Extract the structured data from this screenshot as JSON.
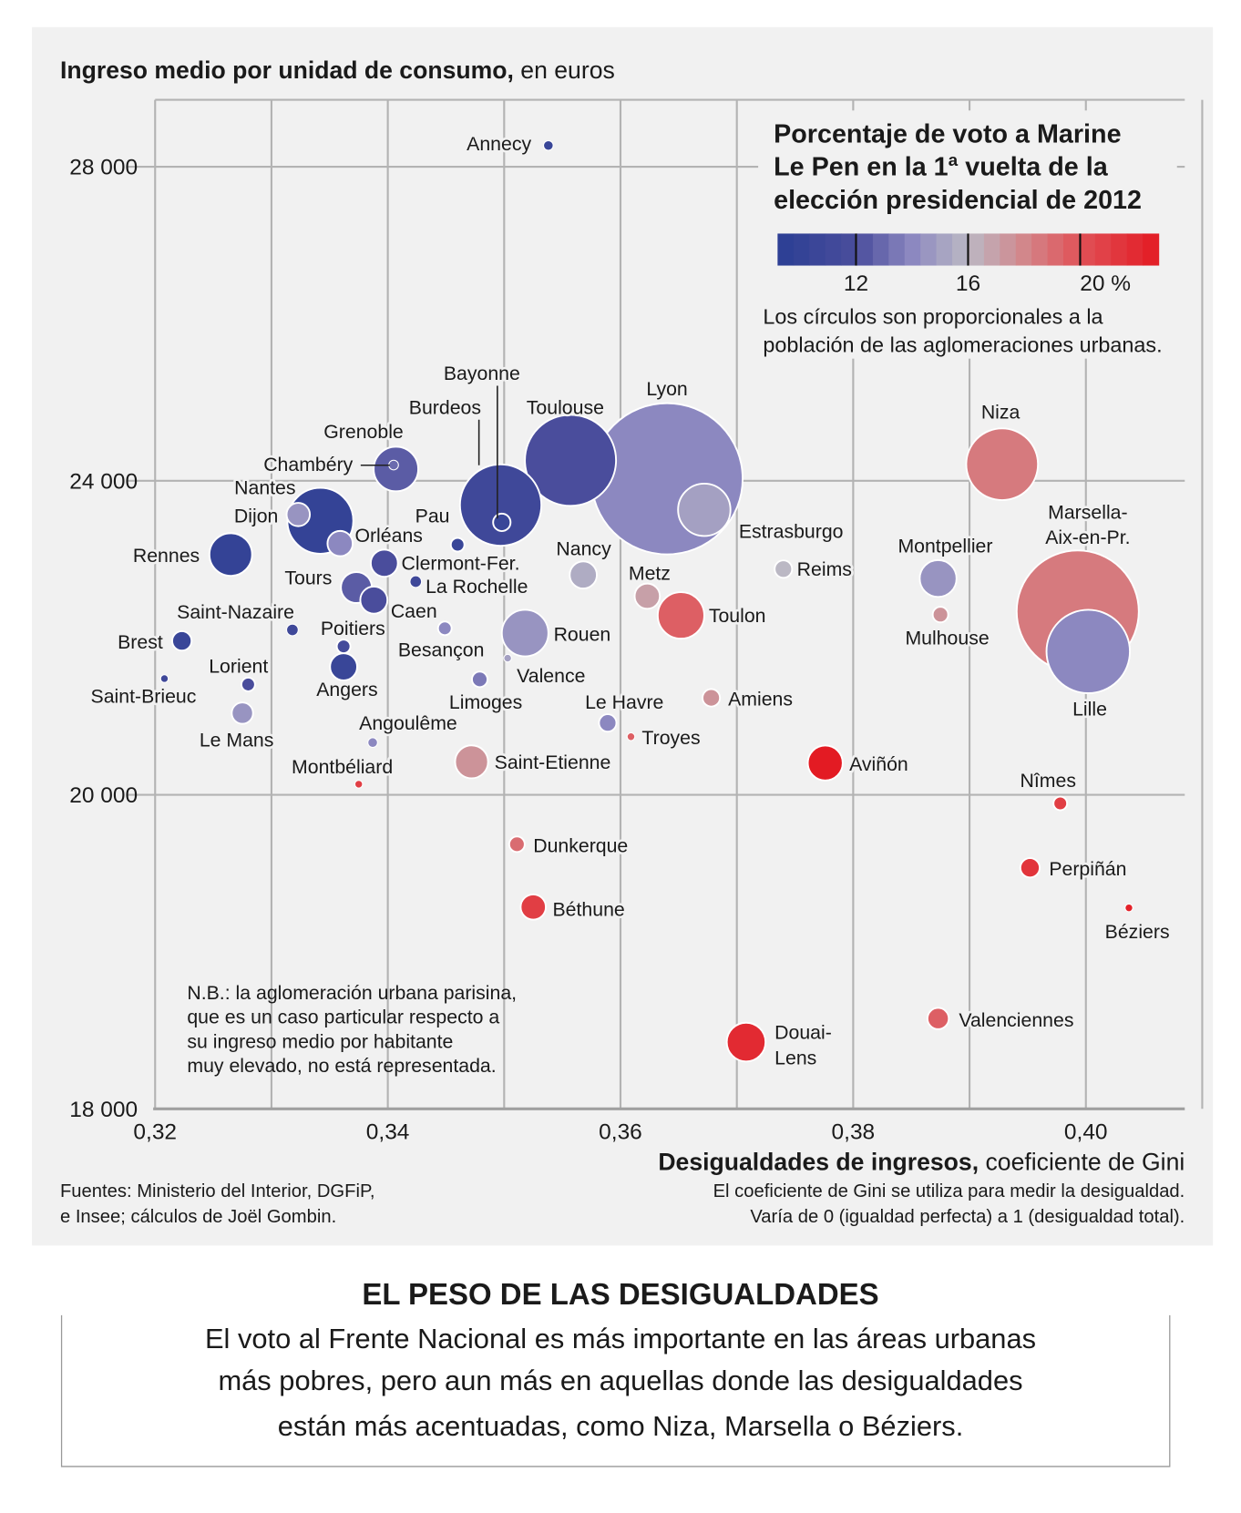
{
  "header": {
    "ylabel_bold": "Ingreso medio por unidad de consumo,",
    "ylabel_rest": " en euros"
  },
  "legend": {
    "title_lines": [
      "Porcentaje de voto a Marine",
      "Le Pen en la 1ª vuelta de la",
      "elección presidencial de 2012"
    ],
    "scale_ticks": [
      {
        "value": 12,
        "label": "12"
      },
      {
        "value": 16,
        "label": "16"
      },
      {
        "value": 20,
        "label": "20 %"
      }
    ],
    "scale_range": [
      9.2,
      22.8
    ],
    "colors": {
      "low": "#2b3f94",
      "mid": "#bbb8c4",
      "high": "#e31b23"
    },
    "note_lines": [
      "Los círculos son proporcionales a la",
      "población de las aglomeraciones urbanas."
    ]
  },
  "nb_lines": [
    "N.B.: la aglomeración urbana parisina,",
    "que es un caso particular respecto a",
    "su ingreso medio por habitante",
    "muy elevado, no está representada."
  ],
  "xaxis": {
    "title_bold": "Desigualdades de ingresos,",
    "title_rest": " coeficiente de Gini",
    "note_lines": [
      "El coeficiente de Gini se utiliza para medir la desigualdad.",
      "Varía de 0 (igualdad perfecta) a 1 (desigualdad total)."
    ]
  },
  "sources_lines": [
    "Fuentes: Ministerio del Interior, DGFiP,",
    "e Insee; cálculos de Joël Gombin."
  ],
  "footer": {
    "title": "EL PESO DE LAS DESIGUALDADES",
    "lines": [
      "El voto al Frente Nacional es más importante en las áreas urbanas",
      "más pobres, pero aun más en aquellas donde las desigualdades",
      "están más acentuadas, como Niza, Marsella o Béziers."
    ]
  },
  "chart_data": {
    "type": "scatter",
    "xlim": [
      0.32,
      0.41
    ],
    "x_ticks": [
      {
        "v": 0.32,
        "label": "0,32"
      },
      {
        "v": 0.34,
        "label": "0,34"
      },
      {
        "v": 0.36,
        "label": "0,36"
      },
      {
        "v": 0.38,
        "label": "0,38"
      },
      {
        "v": 0.4,
        "label": "0,40"
      }
    ],
    "y_ticks": [
      {
        "v": 18000,
        "label": "18 000"
      },
      {
        "v": 20000,
        "label": "20 000"
      },
      {
        "v": 24000,
        "label": "24 000"
      },
      {
        "v": 28000,
        "label": "28 000"
      }
    ],
    "grid": true,
    "size_encoding": "population (relative, Lyon = 100)",
    "color_encoding": "vote share Marine Le Pen %",
    "points": [
      {
        "name": "Annecy",
        "gini": 0.3538,
        "income": 28270,
        "vote": 10.5,
        "pop_rel": 0.41
      },
      {
        "name": "Rennes",
        "gini": 0.3265,
        "income": 23060,
        "vote": 10,
        "pop_rel": 7.96
      },
      {
        "name": "Nantes",
        "gini": 0.3342,
        "income": 23490,
        "vote": 10,
        "pop_rel": 19
      },
      {
        "name": "Dijon",
        "gini": 0.3323,
        "income": 23570,
        "vote": 14.5,
        "pop_rel": 2.37
      },
      {
        "name": "Orléans",
        "gini": 0.3359,
        "income": 23200,
        "vote": 14,
        "pop_rel": 2.78
      },
      {
        "name": "Grenoble",
        "gini": 0.3407,
        "income": 24150,
        "vote": 12.5,
        "pop_rel": 8.69
      },
      {
        "name": "Chambéry",
        "gini": 0.3405,
        "income": 24200,
        "vote": 13,
        "pop_rel": 0.41
      },
      {
        "name": "Burdeos",
        "gini": 0.3497,
        "income": 23690,
        "vote": 11,
        "pop_rel": 29
      },
      {
        "name": "Bayonne",
        "gini": 0.3498,
        "income": 23470,
        "vote": 10.5,
        "pop_rel": 1.33
      },
      {
        "name": "Toulouse",
        "gini": 0.3557,
        "income": 24260,
        "vote": 12,
        "pop_rel": 36.3
      },
      {
        "name": "Lyon",
        "gini": 0.364,
        "income": 24025,
        "vote": 14,
        "pop_rel": 100
      },
      {
        "name": "Estrasburgo",
        "gini": 0.3672,
        "income": 23630,
        "vote": 15,
        "pop_rel": 12
      },
      {
        "name": "Pau",
        "gini": 0.346,
        "income": 23185,
        "vote": 10.5,
        "pop_rel": 0.81
      },
      {
        "name": "Clermont-Fer.",
        "gini": 0.3397,
        "income": 22950,
        "vote": 12,
        "pop_rel": 3.22
      },
      {
        "name": "La Rochelle",
        "gini": 0.3424,
        "income": 22715,
        "vote": 11,
        "pop_rel": 0.59
      },
      {
        "name": "Tours",
        "gini": 0.3373,
        "income": 22640,
        "vote": 12.5,
        "pop_rel": 4.2
      },
      {
        "name": "Caen",
        "gini": 0.3388,
        "income": 22480,
        "vote": 12,
        "pop_rel": 3.22
      },
      {
        "name": "Saint-Nazaire",
        "gini": 0.3318,
        "income": 22100,
        "vote": 11,
        "pop_rel": 0.59
      },
      {
        "name": "Poitiers",
        "gini": 0.3362,
        "income": 21890,
        "vote": 11.5,
        "pop_rel": 0.81
      },
      {
        "name": "Angers",
        "gini": 0.3362,
        "income": 21630,
        "vote": 10.5,
        "pop_rel": 3.22
      },
      {
        "name": "Brest",
        "gini": 0.3223,
        "income": 21960,
        "vote": 10.5,
        "pop_rel": 1.64
      },
      {
        "name": "Saint-Brieuc",
        "gini": 0.3208,
        "income": 21480,
        "vote": 11,
        "pop_rel": 0.26
      },
      {
        "name": "Lorient",
        "gini": 0.328,
        "income": 21405,
        "vote": 12,
        "pop_rel": 0.81
      },
      {
        "name": "Le Mans",
        "gini": 0.3275,
        "income": 21040,
        "vote": 14.5,
        "pop_rel": 1.99
      },
      {
        "name": "Besançon",
        "gini": 0.3449,
        "income": 22120,
        "vote": 14,
        "pop_rel": 0.81
      },
      {
        "name": "Rouen",
        "gini": 0.3518,
        "income": 22060,
        "vote": 14.5,
        "pop_rel": 9.47
      },
      {
        "name": "Valence",
        "gini": 0.3503,
        "income": 21740,
        "vote": 15,
        "pop_rel": 0.26
      },
      {
        "name": "Limoges",
        "gini": 0.3479,
        "income": 21470,
        "vote": 13.5,
        "pop_rel": 1.05
      },
      {
        "name": "Angoulême",
        "gini": 0.3387,
        "income": 20665,
        "vote": 14,
        "pop_rel": 0.41
      },
      {
        "name": "Montbéliard",
        "gini": 0.3375,
        "income": 20135,
        "vote": 21,
        "pop_rel": 0.26
      },
      {
        "name": "Saint-Etienne",
        "gini": 0.3472,
        "income": 20420,
        "vote": 17.5,
        "pop_rel": 4.75
      },
      {
        "name": "Nancy",
        "gini": 0.3568,
        "income": 22800,
        "vote": 15.5,
        "pop_rel": 3.22
      },
      {
        "name": "Metz",
        "gini": 0.3623,
        "income": 22530,
        "vote": 17,
        "pop_rel": 2.78
      },
      {
        "name": "Toulon",
        "gini": 0.3652,
        "income": 22285,
        "vote": 19.5,
        "pop_rel": 9.47
      },
      {
        "name": "Reims",
        "gini": 0.374,
        "income": 22875,
        "vote": 16,
        "pop_rel": 1.33
      },
      {
        "name": "Amiens",
        "gini": 0.3678,
        "income": 21235,
        "vote": 17.5,
        "pop_rel": 1.33
      },
      {
        "name": "Le Havre",
        "gini": 0.3589,
        "income": 20915,
        "vote": 14,
        "pop_rel": 1.33
      },
      {
        "name": "Troyes",
        "gini": 0.3609,
        "income": 20740,
        "vote": 19.5,
        "pop_rel": 0.26
      },
      {
        "name": "Aviñón",
        "gini": 0.3776,
        "income": 20405,
        "vote": 23,
        "pop_rel": 5.33
      },
      {
        "name": "Dunkerque",
        "gini": 0.3511,
        "income": 19685,
        "vote": 19,
        "pop_rel": 1.05
      },
      {
        "name": "Béthune",
        "gini": 0.3525,
        "income": 19285,
        "vote": 21,
        "pop_rel": 2.78
      },
      {
        "name": "Douai-Lens",
        "label_lines": [
          "Douai-",
          "Lens"
        ],
        "gini": 0.3708,
        "income": 18425,
        "vote": 22,
        "pop_rel": 6.57
      },
      {
        "name": "Valenciennes",
        "gini": 0.3873,
        "income": 18575,
        "vote": 19.5,
        "pop_rel": 1.99
      },
      {
        "name": "Nîmes",
        "gini": 0.3978,
        "income": 19945,
        "vote": 21,
        "pop_rel": 0.81
      },
      {
        "name": "Perpiñán",
        "gini": 0.3952,
        "income": 19535,
        "vote": 21.5,
        "pop_rel": 1.64
      },
      {
        "name": "Béziers",
        "gini": 0.4037,
        "income": 19280,
        "vote": 22.5,
        "pop_rel": 0.26
      },
      {
        "name": "Niza",
        "gini": 0.3928,
        "income": 24210,
        "vote": 18.5,
        "pop_rel": 22.5
      },
      {
        "name": "Montpellier",
        "gini": 0.3873,
        "income": 22755,
        "vote": 14.5,
        "pop_rel": 5.93
      },
      {
        "name": "Mulhouse",
        "gini": 0.3875,
        "income": 22295,
        "vote": 17.5,
        "pop_rel": 1.05
      },
      {
        "name": "Marsella-Aix-en-Pr.",
        "label_lines": [
          "Marsella-",
          "Aix-en-Pr."
        ],
        "gini": 0.3993,
        "income": 22335,
        "vote": 18.5,
        "pop_rel": 65.2
      },
      {
        "name": "Lille",
        "gini": 0.4002,
        "income": 21825,
        "vote": 14,
        "pop_rel": 30.4
      }
    ]
  }
}
